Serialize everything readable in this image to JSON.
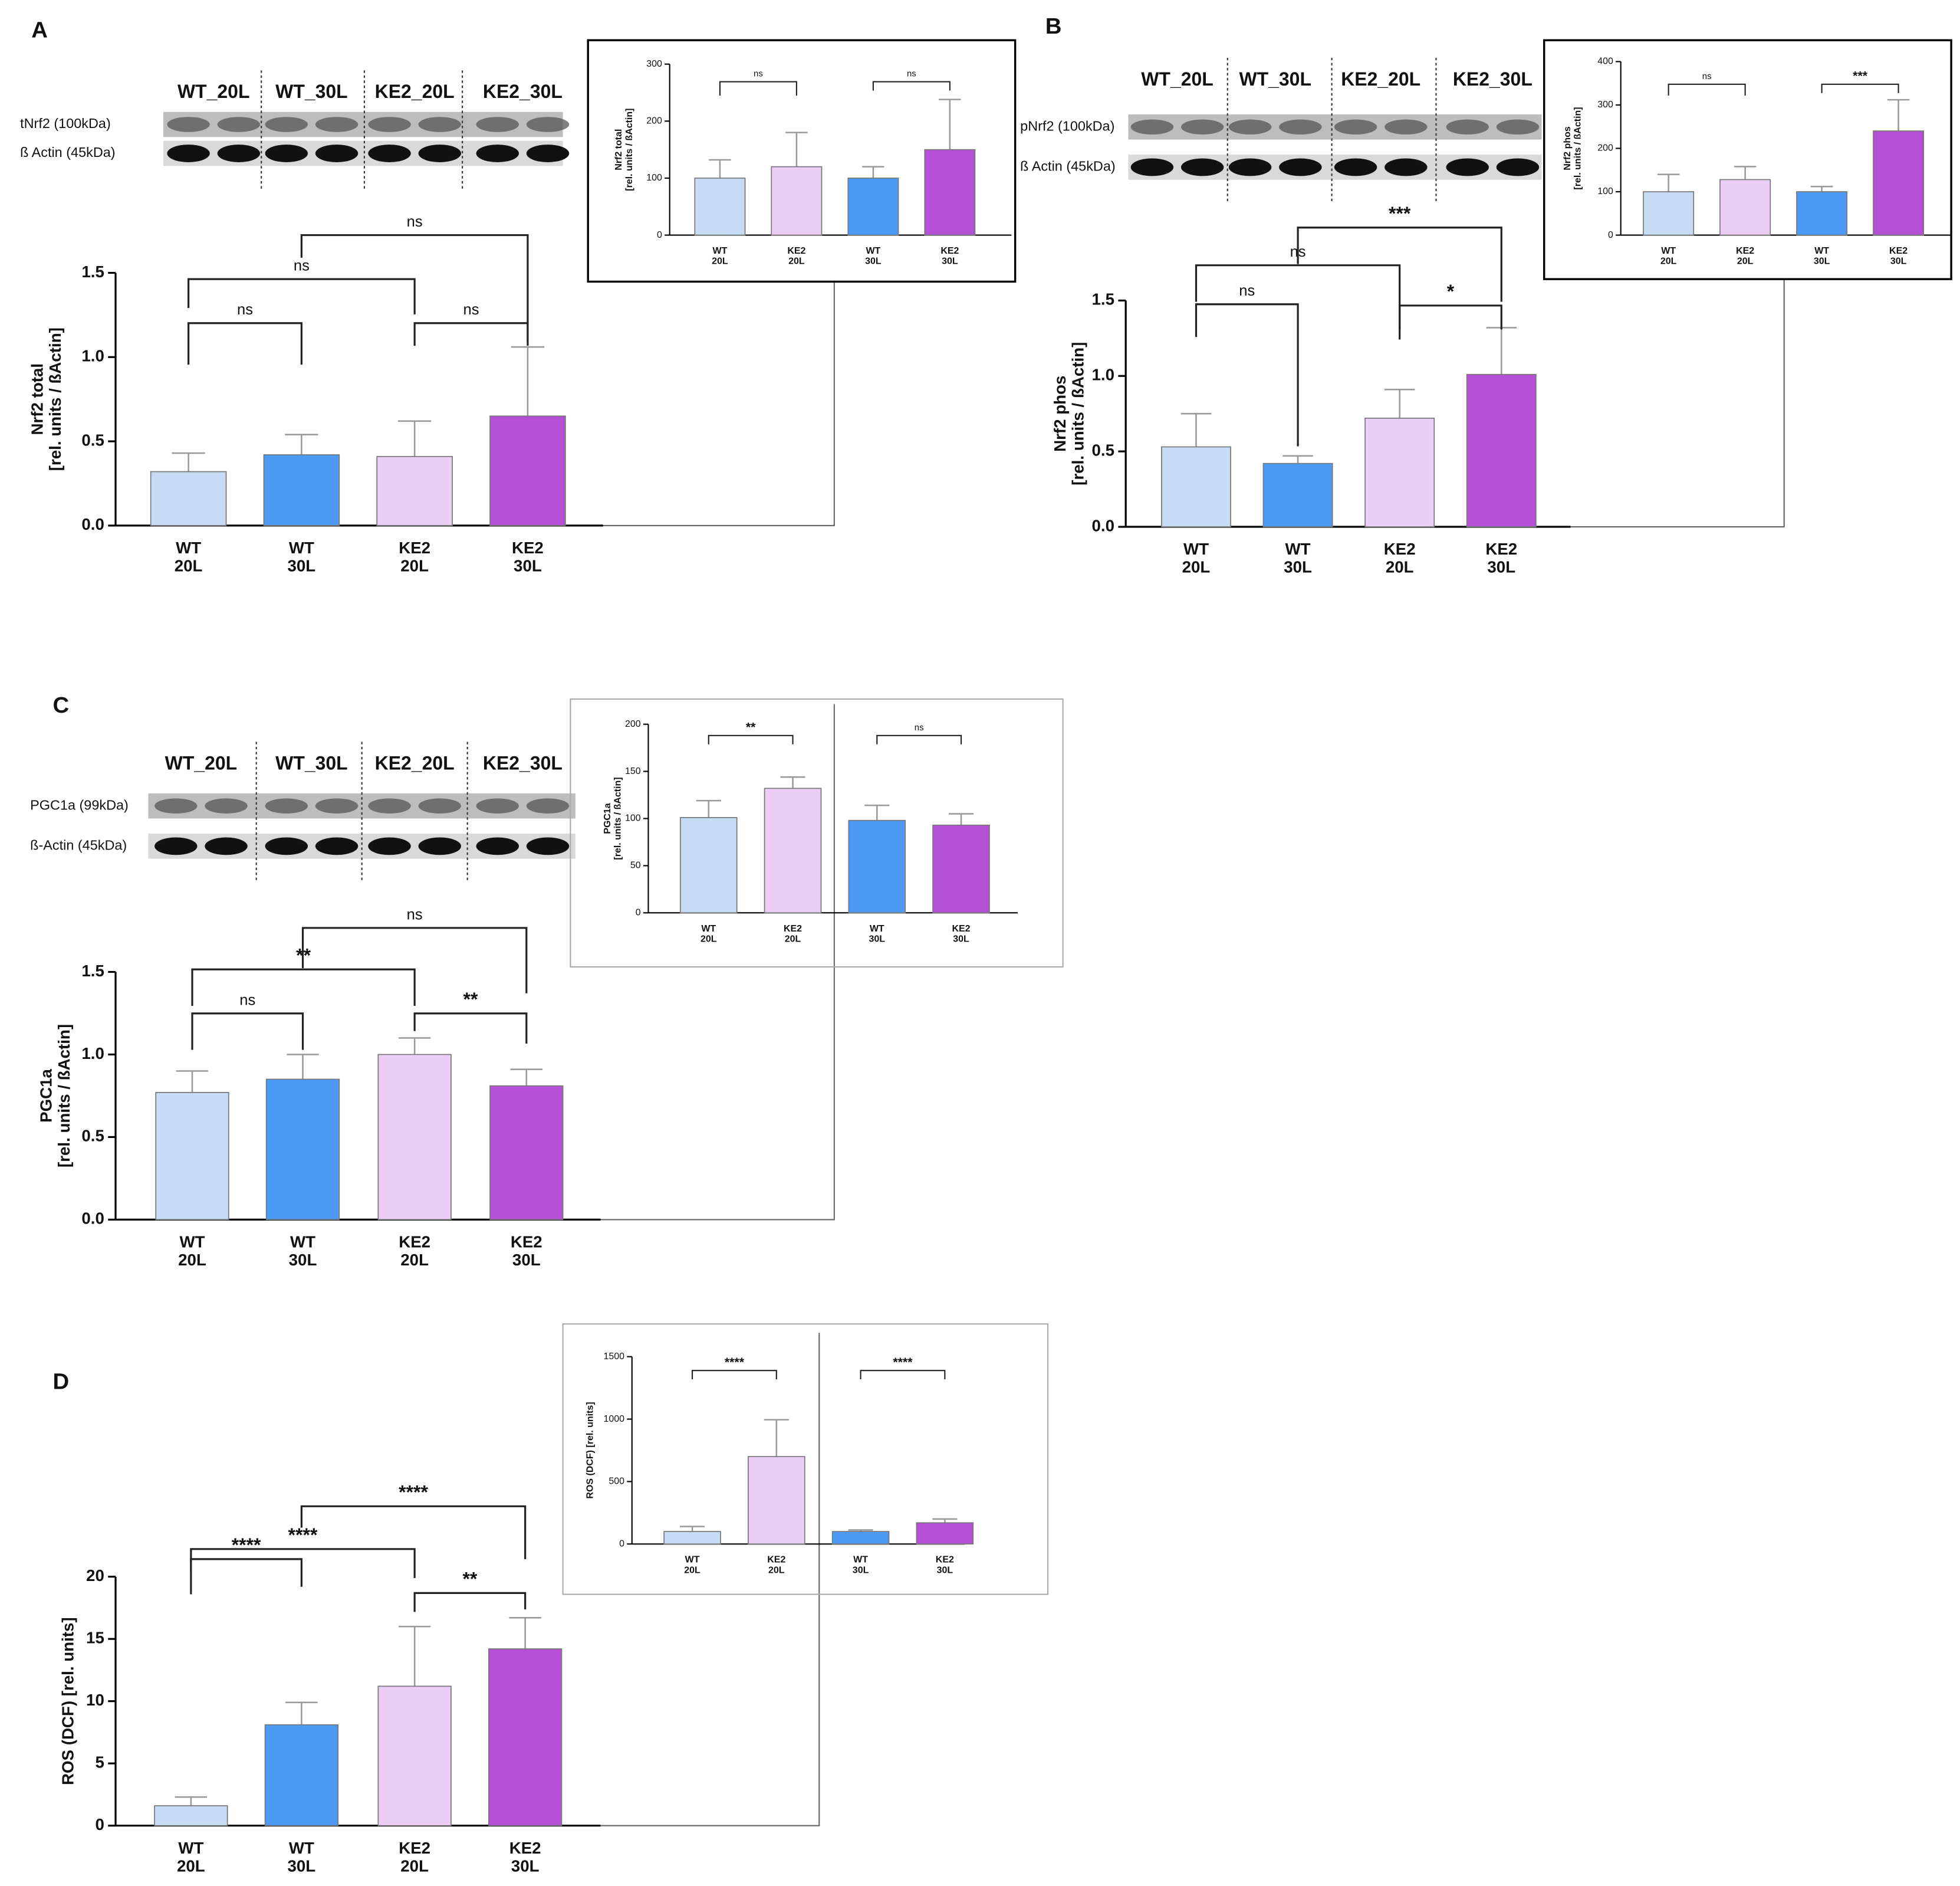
{
  "chart_data": [
    {
      "type": "bar",
      "panel": "A",
      "y_label": "Nrf2 total\n[rel. units / ßActin]",
      "blot": {
        "lanes": [
          "WT_20L",
          "WT_30L",
          "KE2_20L",
          "KE2_30L"
        ],
        "rows": [
          "tNrf2 (100kDa)",
          "ß Actin (45kDa)"
        ]
      },
      "categories": [
        "WT\n20L",
        "WT\n30L",
        "KE2\n20L",
        "KE2\n30L"
      ],
      "values": [
        0.32,
        0.42,
        0.41,
        0.65
      ],
      "errors": [
        0.11,
        0.12,
        0.21,
        0.41
      ],
      "colors": [
        "#c6dcf5",
        "#4d9af5",
        "#eccdf5",
        "#b44fd6"
      ],
      "ylim": [
        0,
        1.5
      ],
      "yticks": [
        {
          "value": 0,
          "label": "0.0"
        },
        0.5,
        {
          "value": 1,
          "label": "1.0"
        },
        1.5
      ],
      "annotations": [
        "ns",
        "ns",
        "ns",
        "ns"
      ]
    },
    {
      "type": "bar",
      "y_label": "Nrf2 total\n[rel. units / ßActin]",
      "categories": [
        "WT\n20L",
        "KE2\n20L",
        "WT\n30L",
        "KE2\n30L"
      ],
      "values": [
        100,
        120,
        100,
        150
      ],
      "errors": [
        32,
        60,
        20,
        88
      ],
      "colors": [
        "#c6dcf5",
        "#eccdf5",
        "#4d9af5",
        "#b44fd6"
      ],
      "ylim": [
        0,
        300
      ],
      "yticks": [
        0,
        100,
        200,
        300
      ],
      "annotations": [
        "ns",
        "ns"
      ]
    },
    {
      "type": "bar",
      "panel": "B",
      "y_label": "Nrf2 phos\n[rel. units / ßActin]",
      "blot": {
        "lanes": [
          "WT_20L",
          "WT_30L",
          "KE2_20L",
          "KE2_30L"
        ],
        "rows": [
          "pNrf2 (100kDa)",
          "ß Actin (45kDa)"
        ]
      },
      "categories": [
        "WT\n20L",
        "WT\n30L",
        "KE2\n20L",
        "KE2\n30L"
      ],
      "values": [
        0.53,
        0.42,
        0.72,
        1.01
      ],
      "errors": [
        0.22,
        0.05,
        0.19,
        0.31
      ],
      "colors": [
        "#c6dcf5",
        "#4d9af5",
        "#eccdf5",
        "#b44fd6"
      ],
      "ylim": [
        0,
        1.5
      ],
      "yticks": [
        {
          "value": 0,
          "label": "0.0"
        },
        0.5,
        {
          "value": 1,
          "label": "1.0"
        },
        1.5
      ],
      "annotations": [
        "ns",
        "*",
        "ns",
        "***"
      ]
    },
    {
      "type": "bar",
      "y_label": "Nrf2 phos\n[rel. units / ßActin]",
      "categories": [
        "WT\n20L",
        "KE2\n20L",
        "WT\n30L",
        "KE2\n30L"
      ],
      "values": [
        100,
        128,
        100,
        240
      ],
      "errors": [
        40,
        30,
        12,
        72
      ],
      "colors": [
        "#c6dcf5",
        "#eccdf5",
        "#4d9af5",
        "#b44fd6"
      ],
      "ylim": [
        0,
        400
      ],
      "yticks": [
        0,
        100,
        200,
        300,
        400
      ],
      "annotations": [
        "ns",
        "***"
      ]
    },
    {
      "type": "bar",
      "panel": "C",
      "y_label": "PGC1a\n[rel. units / ßActin]",
      "blot": {
        "lanes": [
          "WT_20L",
          "WT_30L",
          "KE2_20L",
          "KE2_30L"
        ],
        "rows": [
          "PGC1a (99kDa)",
          "ß-Actin (45kDa)"
        ]
      },
      "categories": [
        "WT\n20L",
        "WT\n30L",
        "KE2\n20L",
        "KE2\n30L"
      ],
      "values": [
        0.77,
        0.85,
        1.0,
        0.81
      ],
      "errors": [
        0.13,
        0.15,
        0.1,
        0.1
      ],
      "colors": [
        "#c6dcf5",
        "#4d9af5",
        "#eccdf5",
        "#b44fd6"
      ],
      "ylim": [
        0,
        1.5
      ],
      "yticks": [
        {
          "value": 0,
          "label": "0.0"
        },
        0.5,
        {
          "value": 1,
          "label": "1.0"
        },
        1.5
      ],
      "annotations": [
        "ns",
        "**",
        "**",
        "ns"
      ]
    },
    {
      "type": "bar",
      "y_label": "PGC1a\n[rel. units / ßActin]",
      "categories": [
        "WT\n20L",
        "KE2\n20L",
        "WT\n30L",
        "KE2\n30L"
      ],
      "values": [
        101,
        132,
        98,
        93
      ],
      "errors": [
        18,
        12,
        16,
        12
      ],
      "colors": [
        "#c6dcf5",
        "#eccdf5",
        "#4d9af5",
        "#b44fd6"
      ],
      "ylim": [
        0,
        200
      ],
      "yticks": [
        0,
        50,
        100,
        150,
        200
      ],
      "annotations": [
        "**",
        "ns"
      ]
    },
    {
      "type": "bar",
      "panel": "D",
      "y_label": "ROS (DCF) [rel. units]",
      "categories": [
        "WT\n20L",
        "WT\n30L",
        "KE2\n20L",
        "KE2\n30L"
      ],
      "values": [
        1.6,
        8.1,
        11.2,
        14.2
      ],
      "errors": [
        0.7,
        1.8,
        4.8,
        2.5
      ],
      "colors": [
        "#c6dcf5",
        "#4d9af5",
        "#eccdf5",
        "#b44fd6"
      ],
      "ylim": [
        0,
        20
      ],
      "yticks": [
        0,
        5,
        10,
        15,
        20
      ],
      "annotations": [
        "****",
        "**",
        "****",
        "****"
      ]
    },
    {
      "type": "bar",
      "y_label": "ROS (DCF) [rel. units]",
      "categories": [
        "WT\n20L",
        "KE2\n20L",
        "WT\n30L",
        "KE2\n30L"
      ],
      "values": [
        100,
        700,
        100,
        170
      ],
      "errors": [
        40,
        295,
        12,
        30
      ],
      "colors": [
        "#c6dcf5",
        "#eccdf5",
        "#4d9af5",
        "#b44fd6"
      ],
      "ylim": [
        0,
        1500
      ],
      "yticks": [
        0,
        500,
        1000,
        1500
      ],
      "annotations": [
        "****",
        "****"
      ]
    }
  ]
}
